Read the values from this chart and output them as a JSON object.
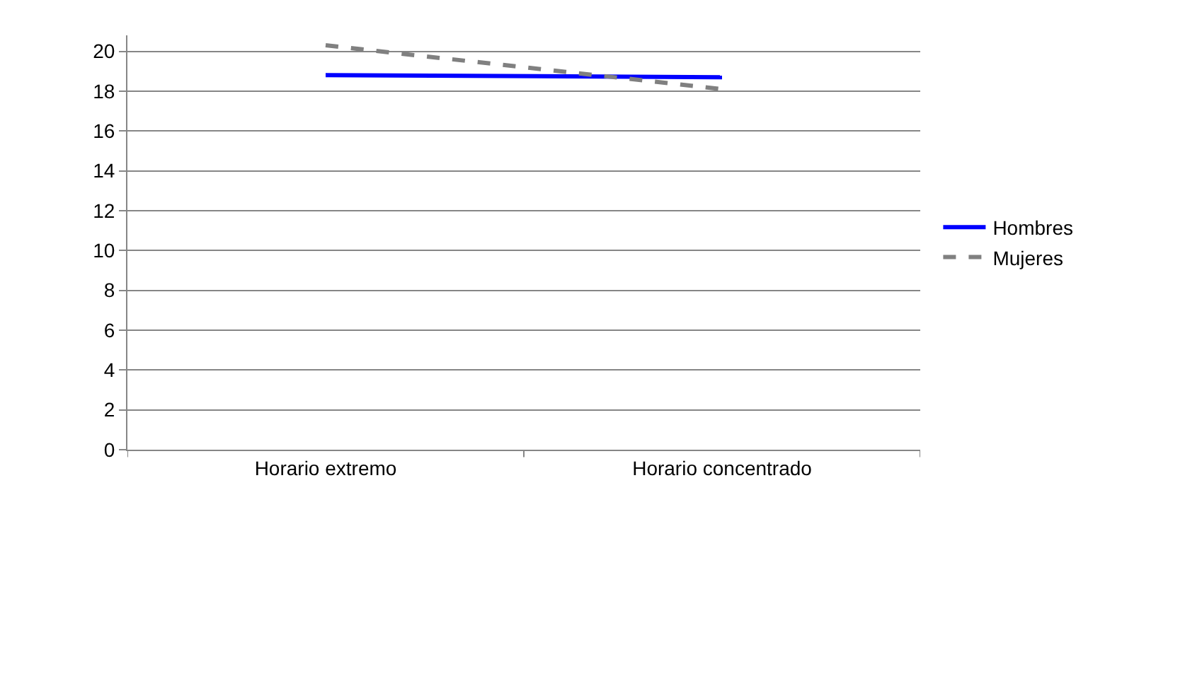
{
  "chart_data": {
    "type": "line",
    "categories": [
      "Horario extremo",
      "Horario concentrado"
    ],
    "series": [
      {
        "name": "Hombres",
        "color": "#0000ff",
        "line_style": "solid",
        "values": [
          18.8,
          18.7
        ]
      },
      {
        "name": "Mujeres",
        "color": "#808080",
        "line_style": "dashed",
        "values": [
          20.3,
          18.1
        ]
      }
    ],
    "ylim": [
      0,
      20.8
    ],
    "yticks": [
      0,
      2,
      4,
      6,
      8,
      10,
      12,
      14,
      16,
      18,
      20
    ],
    "grid": "y",
    "legend": "right",
    "marker": "none"
  }
}
